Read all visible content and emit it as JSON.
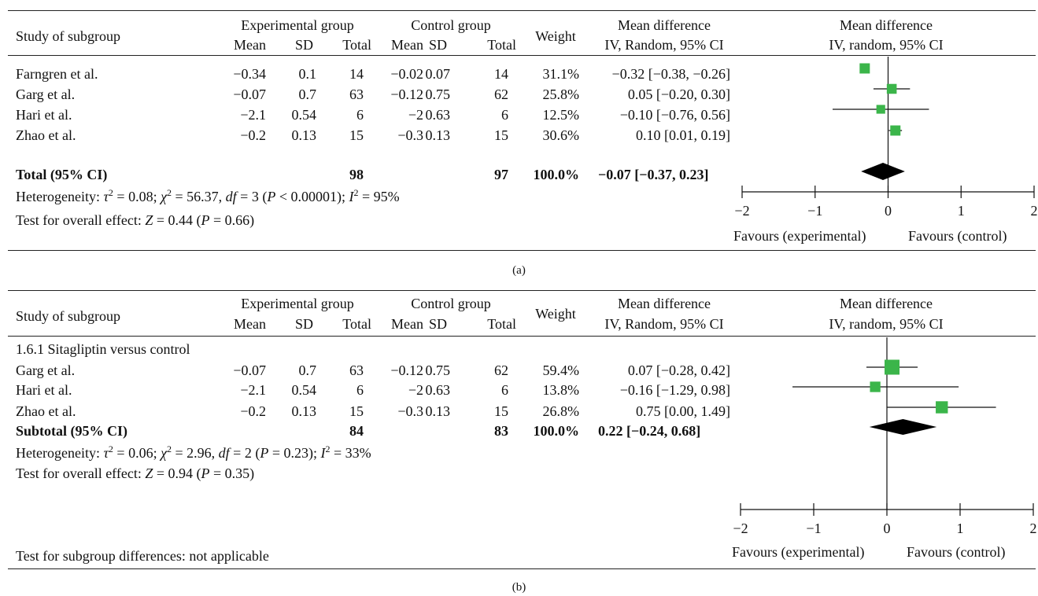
{
  "panels": [
    {
      "caption": "(a)",
      "header": {
        "study_col": "Study of subgroup",
        "exp_group": "Experimental group",
        "ctrl_group": "Control group",
        "mean": "Mean",
        "sd": "SD",
        "total": "Total",
        "weight": "Weight",
        "md_title": "Mean difference",
        "md_sub": "IV, Random, 95% CI",
        "plot_title": "Mean difference",
        "plot_sub": "IV, random, 95% CI"
      },
      "subgroup_label": "",
      "studies": [
        {
          "name": "Farngren et al.",
          "e_mean": "−0.34",
          "e_sd": "0.1",
          "e_total": "14",
          "c_mean": "−0.02",
          "c_sd": "0.07",
          "c_total": "14",
          "weight": "31.1%",
          "ci": "−0.32 [−0.38, −0.26]"
        },
        {
          "name": "Garg et al.",
          "e_mean": "−0.07",
          "e_sd": "0.7",
          "e_total": "63",
          "c_mean": "−0.12",
          "c_sd": "0.75",
          "c_total": "62",
          "weight": "25.8%",
          "ci": "0.05 [−0.20, 0.30]"
        },
        {
          "name": "Hari et al.",
          "e_mean": "−2.1",
          "e_sd": "0.54",
          "e_total": "6",
          "c_mean": "−2",
          "c_sd": "0.63",
          "c_total": "6",
          "weight": "12.5%",
          "ci": "−0.10 [−0.76, 0.56]"
        },
        {
          "name": "Zhao et al.",
          "e_mean": "−0.2",
          "e_sd": "0.13",
          "e_total": "15",
          "c_mean": "−0.3",
          "c_sd": "0.13",
          "c_total": "15",
          "weight": "30.6%",
          "ci": "0.10 [0.01, 0.19]"
        }
      ],
      "total": {
        "label": "Total (95% CI)",
        "e_total": "98",
        "c_total": "97",
        "weight": "100.0%",
        "ci": "−0.07 [−0.37, 0.23]"
      },
      "heterogeneity": {
        "prefix": "Heterogeneity: ",
        "tau": "τ",
        "tau_val": " = 0.08; ",
        "chi": "χ",
        "chi_val": " = 56.37, ",
        "df": "df",
        "df_val": " = 3 (",
        "p": "P",
        "p_val": " < 0.00001); ",
        "i": "I",
        "i_val": " = 95%",
        "sup": "2"
      },
      "overall": {
        "prefix": "Test for overall effect: ",
        "z": "Z",
        "z_val": " = 0.44 (",
        "p": "P",
        "p_val": " = 0.66)"
      },
      "footer_note": "",
      "axis": {
        "ticks": [
          "−2",
          "−1",
          "0",
          "1",
          "2"
        ],
        "favours_left": "Favours (experimental)",
        "favours_right": "Favours (control)"
      }
    },
    {
      "caption": "(b)",
      "header": {
        "study_col": "Study of subgroup",
        "exp_group": "Experimental group",
        "ctrl_group": "Control group",
        "mean": "Mean",
        "sd": "SD",
        "total": "Total",
        "weight": "Weight",
        "md_title": "Mean difference",
        "md_sub": "IV, Random, 95% CI",
        "plot_title": "Mean difference",
        "plot_sub": "IV, random, 95% CI"
      },
      "subgroup_label": "1.6.1 Sitagliptin versus control",
      "studies": [
        {
          "name": "Garg et al.",
          "e_mean": "−0.07",
          "e_sd": "0.7",
          "e_total": "63",
          "c_mean": "−0.12",
          "c_sd": "0.75",
          "c_total": "62",
          "weight": "59.4%",
          "ci": "0.07 [−0.28, 0.42]"
        },
        {
          "name": "Hari et al.",
          "e_mean": "−2.1",
          "e_sd": "0.54",
          "e_total": "6",
          "c_mean": "−2",
          "c_sd": "0.63",
          "c_total": "6",
          "weight": "13.8%",
          "ci": "−0.16 [−1.29, 0.98]"
        },
        {
          "name": "Zhao et al.",
          "e_mean": "−0.2",
          "e_sd": "0.13",
          "e_total": "15",
          "c_mean": "−0.3",
          "c_sd": "0.13",
          "c_total": "15",
          "weight": "26.8%",
          "ci": "0.75 [0.00, 1.49]"
        }
      ],
      "total": {
        "label": "Subtotal (95% CI)",
        "e_total": "84",
        "c_total": "83",
        "weight": "100.0%",
        "ci": "0.22 [−0.24, 0.68]"
      },
      "heterogeneity": {
        "prefix": "Heterogeneity: ",
        "tau": "τ",
        "tau_val": " = 0.06; ",
        "chi": "χ",
        "chi_val": " = 2.96, ",
        "df": "df",
        "df_val": " = 2 (",
        "p": "P",
        "p_val": " = 0.23); ",
        "i": "I",
        "i_val": " = 33%",
        "sup": "2"
      },
      "overall": {
        "prefix": "Test for overall effect: ",
        "z": "Z",
        "z_val": " = 0.94 (",
        "p": "P",
        "p_val": " = 0.35)"
      },
      "footer_note": "Test for subgroup differences: not applicable",
      "axis": {
        "ticks": [
          "−2",
          "−1",
          "0",
          "1",
          "2"
        ],
        "favours_left": "Favours (experimental)",
        "favours_right": "Favours (control)"
      }
    }
  ],
  "colors": {
    "marker": "#3bb54a",
    "line": "#111111",
    "diamond": "#000000"
  },
  "chart_data": [
    {
      "type": "forest",
      "xlim": [
        -2,
        2
      ],
      "studies": [
        {
          "name": "Farngren et al.",
          "md": -0.32,
          "lo": -0.38,
          "hi": -0.26,
          "weight": 31.1
        },
        {
          "name": "Garg et al.",
          "md": 0.05,
          "lo": -0.2,
          "hi": 0.3,
          "weight": 25.8
        },
        {
          "name": "Hari et al.",
          "md": -0.1,
          "lo": -0.76,
          "hi": 0.56,
          "weight": 12.5
        },
        {
          "name": "Zhao et al.",
          "md": 0.1,
          "lo": 0.01,
          "hi": 0.19,
          "weight": 30.6
        }
      ],
      "pooled": {
        "md": -0.07,
        "lo": -0.37,
        "hi": 0.23
      }
    },
    {
      "type": "forest",
      "xlim": [
        -2,
        2
      ],
      "studies": [
        {
          "name": "Garg et al.",
          "md": 0.07,
          "lo": -0.28,
          "hi": 0.42,
          "weight": 59.4
        },
        {
          "name": "Hari et al.",
          "md": -0.16,
          "lo": -1.29,
          "hi": 0.98,
          "weight": 13.8
        },
        {
          "name": "Zhao et al.",
          "md": 0.75,
          "lo": 0.0,
          "hi": 1.49,
          "weight": 26.8
        }
      ],
      "pooled": {
        "md": 0.22,
        "lo": -0.24,
        "hi": 0.68
      }
    }
  ]
}
